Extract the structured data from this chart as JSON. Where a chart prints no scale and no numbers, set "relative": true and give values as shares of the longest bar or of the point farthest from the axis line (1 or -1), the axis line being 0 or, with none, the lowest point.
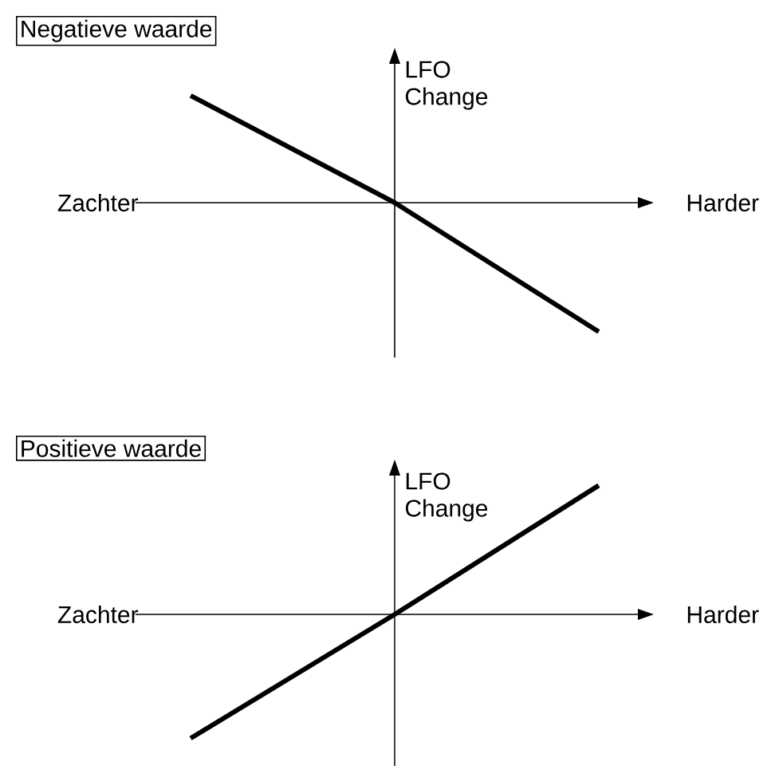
{
  "chart_data": [
    {
      "type": "line",
      "title": "Negatieve waarde",
      "ylabel": "LFO Change",
      "annotations": [
        "Zachter",
        "Harder"
      ],
      "categories": [
        null,
        null,
        null
      ],
      "relative": true,
      "series": [
        {
          "color": "#000000",
          "values": [
            0.83,
            0,
            -1
          ]
        }
      ]
    },
    {
      "type": "line",
      "title": "Positieve waarde",
      "ylabel": "LFO Change",
      "annotations": [
        "Zachter",
        "Harder"
      ],
      "categories": [
        null,
        null,
        null
      ],
      "relative": true,
      "series": [
        {
          "color": "#000000",
          "values": [
            -0.96,
            0,
            1
          ]
        }
      ]
    }
  ]
}
